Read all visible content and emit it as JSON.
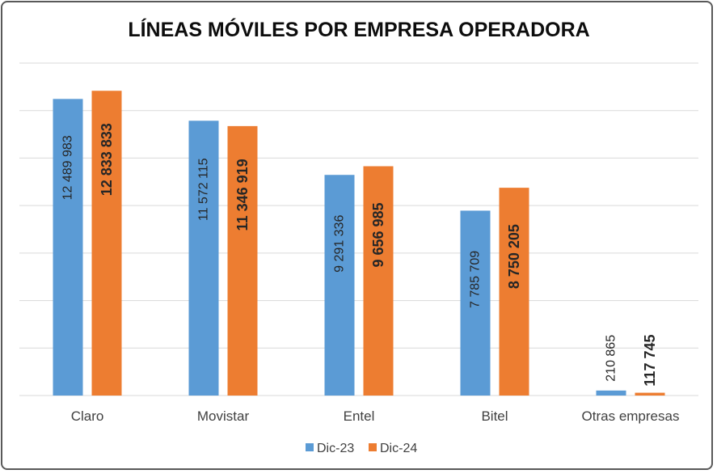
{
  "chart_data": {
    "type": "bar",
    "title": "LÍNEAS MÓVILES POR EMPRESA OPERADORA",
    "xlabel": "",
    "ylabel": "",
    "ylim": [
      0,
      14000000
    ],
    "grid": true,
    "legend": "bottom",
    "categories": [
      "Claro",
      "Movistar",
      "Entel",
      "Bitel",
      "Otras empresas"
    ],
    "series": [
      {
        "name": "Dic-23",
        "color": "#5b9bd5",
        "values": [
          12489983,
          11572115,
          9291336,
          7785709,
          210865
        ],
        "labels": [
          "12 489 983",
          "11 572 115",
          "9 291 336",
          "7 785 709",
          "210 865"
        ]
      },
      {
        "name": "Dic-24",
        "color": "#ed7d31",
        "values": [
          12833833,
          11346919,
          9656985,
          8750205,
          117745
        ],
        "labels": [
          "12 833 833",
          "11 346 919",
          "9 656 985",
          "8 750 205",
          "117 745"
        ]
      }
    ]
  }
}
